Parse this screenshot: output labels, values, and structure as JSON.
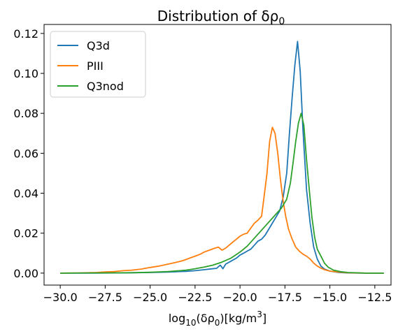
{
  "chart_data": {
    "type": "line",
    "title": "Distribution of δρ",
    "title_subscript": "0",
    "xlabel_prefix": "log",
    "xlabel_sub": "10",
    "xlabel_mid": "(δρ",
    "xlabel_sub2": "0",
    "xlabel_suffix": ")[kg/m",
    "xlabel_sup": "3",
    "xlabel_end": "]",
    "ylabel": "",
    "xlim": [
      -30.9,
      -11.6
    ],
    "ylim": [
      -0.006,
      0.1245
    ],
    "x_ticks": [
      -30.0,
      -27.5,
      -25.0,
      -22.5,
      -20.0,
      -17.5,
      -15.0,
      -12.5
    ],
    "x_tick_labels": [
      "−30.0",
      "−27.5",
      "−25.0",
      "−22.5",
      "−20.0",
      "−17.5",
      "−15.0",
      "−12.5"
    ],
    "y_ticks": [
      0.0,
      0.02,
      0.04,
      0.06,
      0.08,
      0.1,
      0.12
    ],
    "y_tick_labels": [
      "0.00",
      "0.02",
      "0.04",
      "0.06",
      "0.08",
      "0.10",
      "0.12"
    ],
    "grid": false,
    "legend_placement": "top-left",
    "series": [
      {
        "name": "Q3d",
        "color": "#1f77b4",
        "points": [
          [
            -30.0,
            0.0
          ],
          [
            -28.0,
            0.0
          ],
          [
            -26.0,
            0.0002
          ],
          [
            -25.0,
            0.0003
          ],
          [
            -24.0,
            0.0005
          ],
          [
            -23.5,
            0.0007
          ],
          [
            -23.0,
            0.0009
          ],
          [
            -22.5,
            0.0012
          ],
          [
            -22.0,
            0.0017
          ],
          [
            -21.6,
            0.0021
          ],
          [
            -21.3,
            0.0024
          ],
          [
            -21.1,
            0.004
          ],
          [
            -20.95,
            0.0022
          ],
          [
            -20.8,
            0.0045
          ],
          [
            -20.5,
            0.006
          ],
          [
            -20.2,
            0.0075
          ],
          [
            -20.0,
            0.009
          ],
          [
            -19.8,
            0.01
          ],
          [
            -19.6,
            0.011
          ],
          [
            -19.4,
            0.012
          ],
          [
            -19.2,
            0.014
          ],
          [
            -19.0,
            0.016
          ],
          [
            -18.8,
            0.017
          ],
          [
            -18.6,
            0.019
          ],
          [
            -18.4,
            0.022
          ],
          [
            -18.2,
            0.025
          ],
          [
            -18.0,
            0.028
          ],
          [
            -17.8,
            0.031
          ],
          [
            -17.6,
            0.038
          ],
          [
            -17.4,
            0.05
          ],
          [
            -17.25,
            0.07
          ],
          [
            -17.1,
            0.088
          ],
          [
            -16.95,
            0.104
          ],
          [
            -16.8,
            0.116
          ],
          [
            -16.65,
            0.101
          ],
          [
            -16.5,
            0.072
          ],
          [
            -16.3,
            0.042
          ],
          [
            -16.1,
            0.025
          ],
          [
            -15.9,
            0.013
          ],
          [
            -15.7,
            0.007
          ],
          [
            -15.5,
            0.0035
          ],
          [
            -15.3,
            0.002
          ],
          [
            -15.0,
            0.001
          ],
          [
            -14.5,
            0.0003
          ],
          [
            -14.0,
            0.0001
          ],
          [
            -13.0,
            0.0
          ],
          [
            -12.0,
            0.0
          ]
        ]
      },
      {
        "name": "PIII",
        "color": "#ff7f0e",
        "points": [
          [
            -30.0,
            0.0
          ],
          [
            -29.0,
            0.0001
          ],
          [
            -28.0,
            0.0003
          ],
          [
            -27.5,
            0.0006
          ],
          [
            -27.0,
            0.0008
          ],
          [
            -26.5,
            0.0012
          ],
          [
            -26.0,
            0.0015
          ],
          [
            -25.5,
            0.002
          ],
          [
            -25.0,
            0.0028
          ],
          [
            -24.5,
            0.0035
          ],
          [
            -24.0,
            0.0045
          ],
          [
            -23.5,
            0.0055
          ],
          [
            -23.2,
            0.0062
          ],
          [
            -23.0,
            0.0068
          ],
          [
            -22.8,
            0.0075
          ],
          [
            -22.5,
            0.0085
          ],
          [
            -22.2,
            0.0095
          ],
          [
            -22.0,
            0.0105
          ],
          [
            -21.7,
            0.0115
          ],
          [
            -21.4,
            0.0125
          ],
          [
            -21.2,
            0.013
          ],
          [
            -21.0,
            0.0115
          ],
          [
            -20.8,
            0.0125
          ],
          [
            -20.6,
            0.014
          ],
          [
            -20.4,
            0.0155
          ],
          [
            -20.2,
            0.017
          ],
          [
            -20.0,
            0.0185
          ],
          [
            -19.8,
            0.0195
          ],
          [
            -19.6,
            0.02
          ],
          [
            -19.4,
            0.0225
          ],
          [
            -19.2,
            0.025
          ],
          [
            -19.0,
            0.0265
          ],
          [
            -18.8,
            0.0285
          ],
          [
            -18.65,
            0.039
          ],
          [
            -18.5,
            0.05
          ],
          [
            -18.35,
            0.066
          ],
          [
            -18.2,
            0.073
          ],
          [
            -18.05,
            0.07
          ],
          [
            -17.9,
            0.06
          ],
          [
            -17.75,
            0.047
          ],
          [
            -17.6,
            0.036
          ],
          [
            -17.45,
            0.028
          ],
          [
            -17.3,
            0.022
          ],
          [
            -17.1,
            0.017
          ],
          [
            -16.9,
            0.013
          ],
          [
            -16.7,
            0.011
          ],
          [
            -16.5,
            0.0095
          ],
          [
            -16.3,
            0.0085
          ],
          [
            -16.1,
            0.007
          ],
          [
            -15.9,
            0.005
          ],
          [
            -15.7,
            0.0035
          ],
          [
            -15.5,
            0.0025
          ],
          [
            -15.3,
            0.0017
          ],
          [
            -15.0,
            0.001
          ],
          [
            -14.5,
            0.0005
          ],
          [
            -14.0,
            0.0002
          ],
          [
            -13.0,
            0.0
          ],
          [
            -12.0,
            0.0
          ]
        ]
      },
      {
        "name": "Q3nod",
        "color": "#2ca02c",
        "points": [
          [
            -30.0,
            0.0
          ],
          [
            -28.0,
            0.0001
          ],
          [
            -26.0,
            0.0002
          ],
          [
            -25.0,
            0.0004
          ],
          [
            -24.0,
            0.0008
          ],
          [
            -23.5,
            0.0011
          ],
          [
            -23.0,
            0.0015
          ],
          [
            -22.5,
            0.0022
          ],
          [
            -22.0,
            0.003
          ],
          [
            -21.5,
            0.004
          ],
          [
            -21.0,
            0.0055
          ],
          [
            -20.5,
            0.0075
          ],
          [
            -20.0,
            0.0105
          ],
          [
            -19.6,
            0.0135
          ],
          [
            -19.2,
            0.0175
          ],
          [
            -18.8,
            0.0215
          ],
          [
            -18.4,
            0.0255
          ],
          [
            -18.0,
            0.0295
          ],
          [
            -17.7,
            0.0325
          ],
          [
            -17.4,
            0.037
          ],
          [
            -17.2,
            0.045
          ],
          [
            -17.05,
            0.055
          ],
          [
            -16.9,
            0.066
          ],
          [
            -16.75,
            0.075
          ],
          [
            -16.6,
            0.08
          ],
          [
            -16.45,
            0.074
          ],
          [
            -16.3,
            0.057
          ],
          [
            -16.15,
            0.042
          ],
          [
            -16.0,
            0.028
          ],
          [
            -15.85,
            0.018
          ],
          [
            -15.7,
            0.012
          ],
          [
            -15.5,
            0.0085
          ],
          [
            -15.3,
            0.005
          ],
          [
            -15.1,
            0.003
          ],
          [
            -14.8,
            0.0015
          ],
          [
            -14.4,
            0.0007
          ],
          [
            -14.0,
            0.0003
          ],
          [
            -13.0,
            0.0
          ],
          [
            -12.0,
            0.0
          ]
        ]
      }
    ]
  }
}
